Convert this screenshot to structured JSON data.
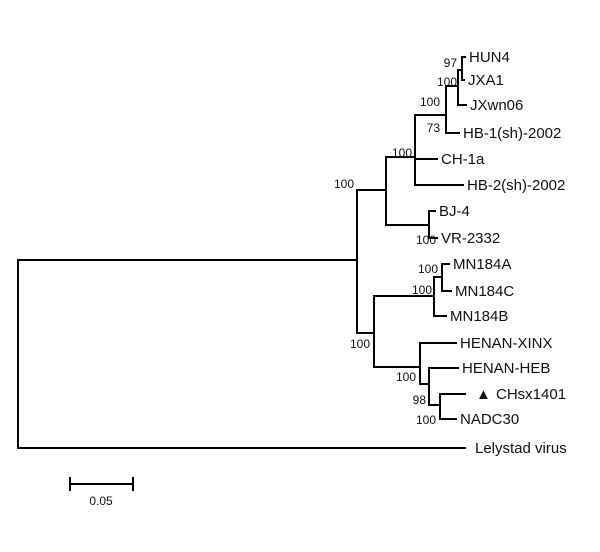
{
  "tree": {
    "leaves": {
      "hun4": "HUN4",
      "jxa1": "JXA1",
      "jxwn06": "JXwn06",
      "hb1": "HB-1(sh)-2002",
      "ch1a": "CH-1a",
      "hb2": "HB-2(sh)-2002",
      "bj4": "BJ-4",
      "vr2332": "VR-2332",
      "mn184a": "MN184A",
      "mn184c": "MN184C",
      "mn184b": "MN184B",
      "henan_xinx": "HENAN-XINX",
      "henan_heb": "HENAN-HEB",
      "chsx1401": "CHsx1401",
      "nadc30": "NADC30",
      "lelystad": "Lelystad virus"
    },
    "marker_symbol": "▲",
    "support": {
      "hun4_jxa1": "97",
      "jxa1_jxwn06": "100",
      "jx_group": "100",
      "hb1_group": "73",
      "ch1a_group": "100",
      "type2_root": "100",
      "bj4_vr2332": "100",
      "mn184a_c": "100",
      "mn184_group": "100",
      "lineage1_root": "100",
      "henan_group": "100",
      "chsx_group": "98",
      "chsx_nadc30": "100"
    }
  },
  "scale_bar": {
    "value": 0.05,
    "label": "0.05"
  },
  "colors": {
    "line": "#000000",
    "text": "#111111"
  }
}
